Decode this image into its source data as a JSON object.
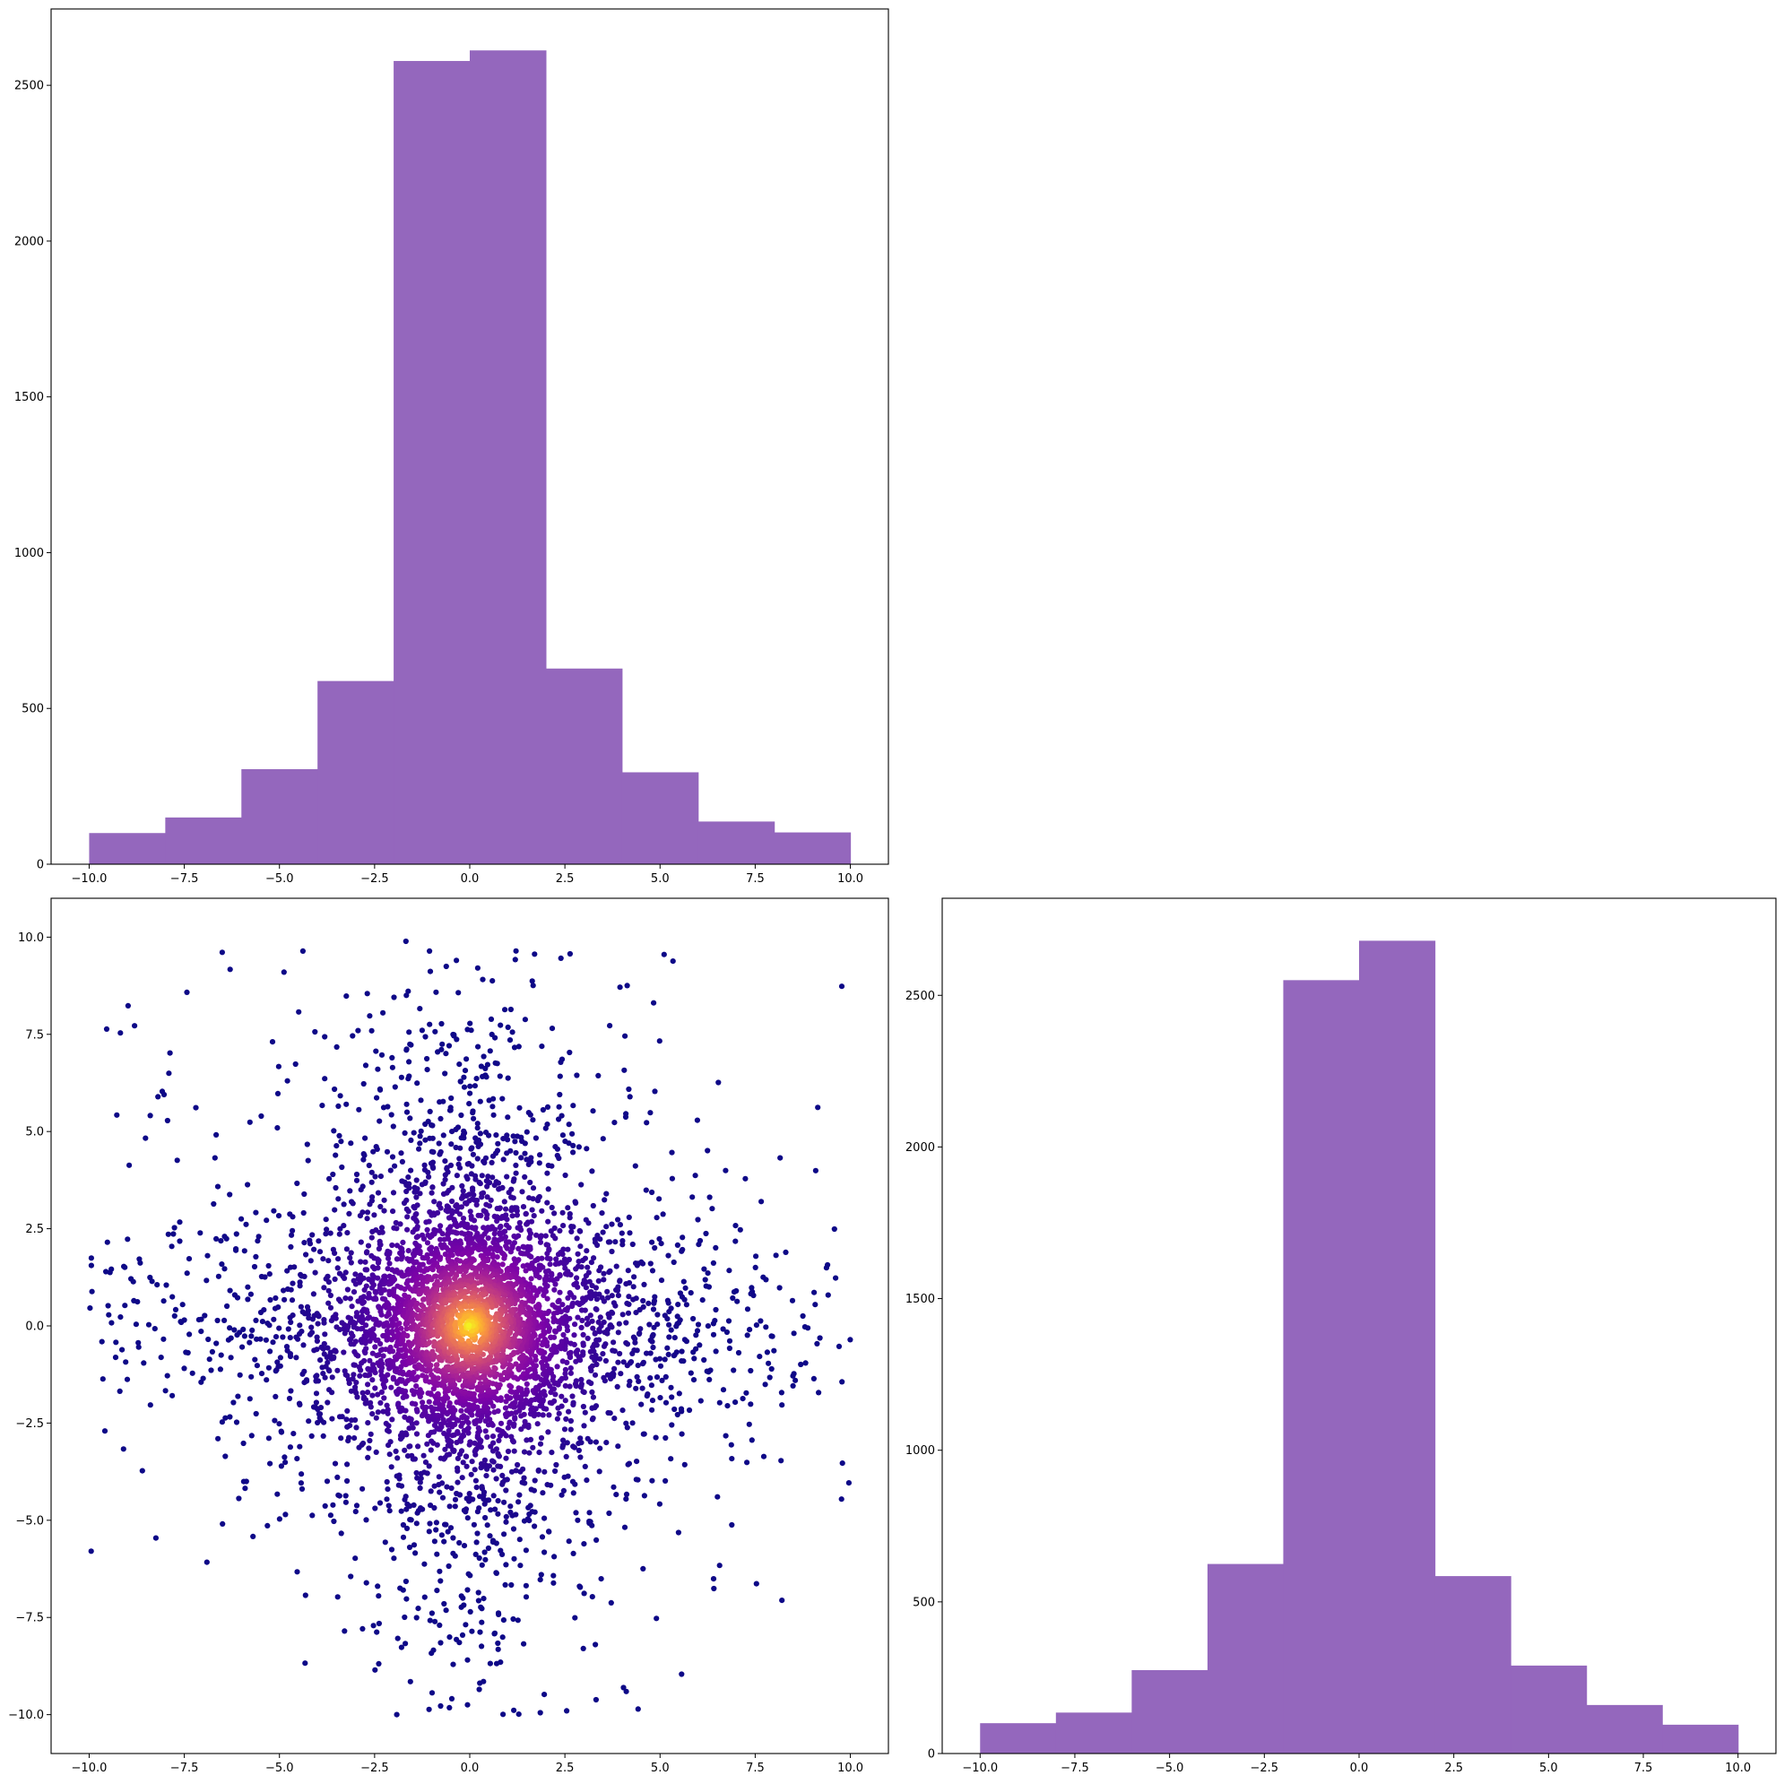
{
  "chart_data": [
    {
      "type": "bar",
      "title": "",
      "xlabel": "",
      "ylabel": "",
      "color": "#9467bd",
      "bin_edges": [
        -10,
        -8,
        -6,
        -4,
        -2,
        0,
        2,
        4,
        6,
        8,
        10
      ],
      "values": [
        100,
        150,
        305,
        588,
        2578,
        2612,
        628,
        295,
        137,
        102
      ],
      "xlim": [
        -11,
        11
      ],
      "ylim": [
        0,
        2745
      ],
      "xticks": [
        -10.0,
        -7.5,
        -5.0,
        -2.5,
        0.0,
        2.5,
        5.0,
        7.5,
        10.0
      ],
      "xtick_labels": [
        "−10.0",
        "−7.5",
        "−5.0",
        "−2.5",
        "0.0",
        "2.5",
        "5.0",
        "7.5",
        "10.0"
      ],
      "yticks": [
        0,
        500,
        1000,
        1500,
        2000,
        2500
      ],
      "ytick_labels": [
        "0",
        "500",
        "1000",
        "1500",
        "2000",
        "2500"
      ],
      "grid": false
    },
    {
      "type": "scatter",
      "title": "",
      "xlabel": "",
      "ylabel": "",
      "colormap": "plasma",
      "color_by": "point density",
      "point_count": 5000,
      "x_range": [
        -10,
        10
      ],
      "y_range": [
        -10,
        10
      ],
      "center": [
        0,
        0
      ],
      "xlim": [
        -11,
        11
      ],
      "ylim": [
        -11,
        11
      ],
      "xticks": [
        -10.0,
        -7.5,
        -5.0,
        -2.5,
        0.0,
        2.5,
        5.0,
        7.5,
        10.0
      ],
      "xtick_labels": [
        "−10.0",
        "−7.5",
        "−5.0",
        "−2.5",
        "0.0",
        "2.5",
        "5.0",
        "7.5",
        "10.0"
      ],
      "yticks": [
        -10.0,
        -7.5,
        -5.0,
        -2.5,
        0.0,
        2.5,
        5.0,
        7.5,
        10.0
      ],
      "ytick_labels": [
        "−10.0",
        "−7.5",
        "−5.0",
        "−2.5",
        "0.0",
        "2.5",
        "5.0",
        "7.5",
        "10.0"
      ],
      "grid": false
    },
    {
      "type": "bar",
      "title": "",
      "xlabel": "",
      "ylabel": "",
      "color": "#9467bd",
      "bin_edges": [
        -10,
        -8,
        -6,
        -4,
        -2,
        0,
        2,
        4,
        6,
        8,
        10
      ],
      "values": [
        100,
        135,
        275,
        625,
        2550,
        2680,
        585,
        290,
        160,
        95
      ],
      "xlim": [
        -11,
        11
      ],
      "ylim": [
        0,
        2820
      ],
      "xticks": [
        -10.0,
        -7.5,
        -5.0,
        -2.5,
        0.0,
        2.5,
        5.0,
        7.5,
        10.0
      ],
      "xtick_labels": [
        "−10.0",
        "−7.5",
        "−5.0",
        "−2.5",
        "0.0",
        "2.5",
        "5.0",
        "7.5",
        "10.0"
      ],
      "yticks": [
        0,
        500,
        1000,
        1500,
        2000,
        2500
      ],
      "ytick_labels": [
        "0",
        "500",
        "1000",
        "1500",
        "2000",
        "2500"
      ],
      "grid": false
    }
  ]
}
